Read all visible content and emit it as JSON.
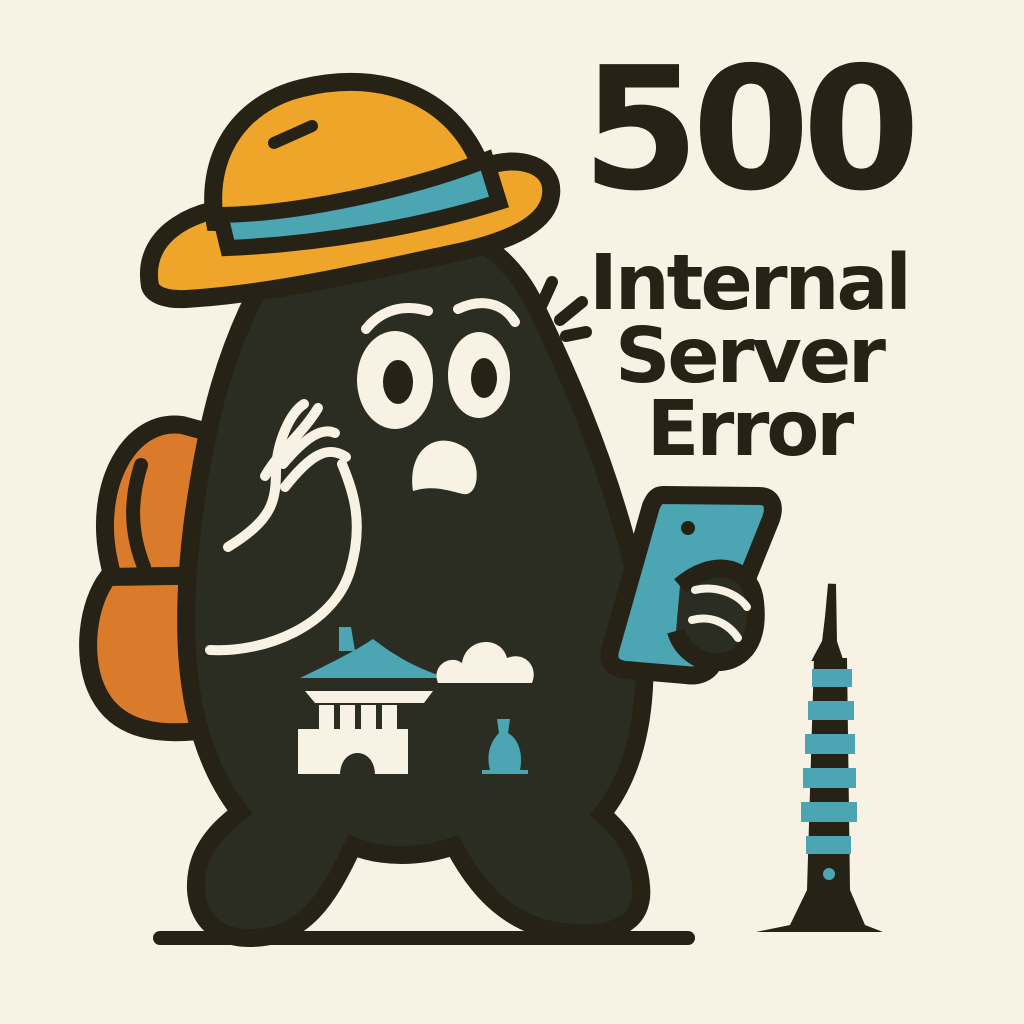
{
  "error": {
    "code": "500",
    "lines": [
      "Internal",
      "Server",
      "Error"
    ]
  },
  "colors": {
    "background": "#f8f2e4",
    "ink": "#262216",
    "hat": "#eea52a",
    "band": "#4ba5b3",
    "backpack": "#d97b2a",
    "phone": "#4ba5b3",
    "tower": "#4ba5b3",
    "cream": "#f8f2e4"
  },
  "illustration": {
    "character": "worried-blob-traveler",
    "accessories": [
      "bucket-hat",
      "backpack",
      "phone"
    ],
    "landmarks": [
      "gate-icon",
      "cloud-icon",
      "temple-icon",
      "tower-icon"
    ]
  }
}
